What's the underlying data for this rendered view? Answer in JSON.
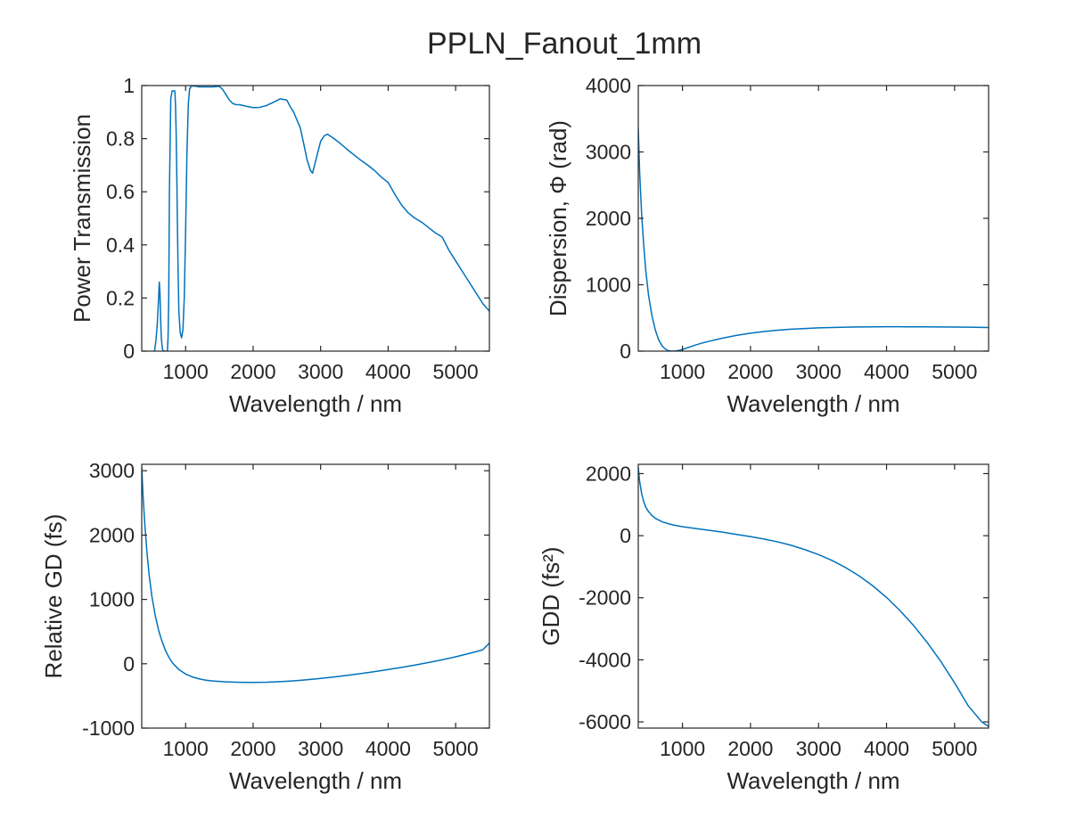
{
  "figure": {
    "title": "PPLN_Fanout_1mm"
  },
  "colors": {
    "line": "#0072BD",
    "axes": "#262626",
    "background": "#ffffff"
  },
  "chart_data": [
    {
      "type": "line",
      "xlabel": "Wavelength / nm",
      "ylabel": "Power Transmission",
      "xlim": [
        350,
        5500
      ],
      "ylim": [
        0,
        1
      ],
      "xticks": [
        1000,
        2000,
        3000,
        4000,
        5000
      ],
      "xtick_labels": [
        "1000",
        "2000",
        "3000",
        "4000",
        "5000"
      ],
      "yticks": [
        0,
        0.2,
        0.4,
        0.6,
        0.8,
        1
      ],
      "ytick_labels": [
        "0",
        "0.2",
        "0.4",
        "0.6",
        "0.8",
        "1"
      ],
      "grid": false,
      "series": [
        {
          "x": [
            540,
            560,
            580,
            600,
            610,
            620,
            630,
            640,
            655,
            670,
            685,
            700,
            715,
            730,
            740,
            750,
            760,
            780,
            800,
            820,
            840,
            850,
            860,
            870,
            880,
            890,
            900,
            920,
            940,
            960,
            980,
            1000,
            1020,
            1040,
            1060,
            1070,
            1080,
            1090,
            1100,
            1110,
            1120,
            1140,
            1160,
            1200,
            1250,
            1300,
            1400,
            1500,
            1550,
            1600,
            1650,
            1700,
            1750,
            1800,
            1900,
            2000,
            2100,
            2200,
            2300,
            2400,
            2500,
            2550,
            2600,
            2700,
            2750,
            2800,
            2850,
            2880,
            2900,
            2950,
            3000,
            3050,
            3100,
            3200,
            3300,
            3400,
            3500,
            3600,
            3700,
            3800,
            3900,
            3950,
            4000,
            4100,
            4200,
            4300,
            4400,
            4500,
            4600,
            4700,
            4800,
            4900,
            5000,
            5100,
            5200,
            5300,
            5400,
            5500
          ],
          "y": [
            0,
            0.04,
            0.1,
            0.2,
            0.26,
            0.22,
            0.12,
            0.05,
            0.01,
            0,
            0,
            0,
            0,
            0,
            0.05,
            0.2,
            0.6,
            0.95,
            0.98,
            0.98,
            0.98,
            0.93,
            0.82,
            0.65,
            0.45,
            0.28,
            0.15,
            0.07,
            0.05,
            0.08,
            0.2,
            0.45,
            0.75,
            0.93,
            0.99,
            0.99,
            0.998,
            0.998,
            0.998,
            0.998,
            0.998,
            0.998,
            0.997,
            0.995,
            0.995,
            0.995,
            0.995,
            0.997,
            0.985,
            0.965,
            0.945,
            0.932,
            0.928,
            0.928,
            0.922,
            0.917,
            0.918,
            0.925,
            0.937,
            0.95,
            0.945,
            0.92,
            0.9,
            0.84,
            0.78,
            0.72,
            0.68,
            0.67,
            0.69,
            0.74,
            0.79,
            0.81,
            0.817,
            0.8,
            0.78,
            0.758,
            0.738,
            0.718,
            0.7,
            0.68,
            0.655,
            0.645,
            0.635,
            0.59,
            0.55,
            0.52,
            0.5,
            0.485,
            0.465,
            0.445,
            0.43,
            0.38,
            0.34,
            0.3,
            0.26,
            0.22,
            0.18,
            0.15
          ]
        }
      ]
    },
    {
      "type": "line",
      "xlabel": "Wavelength / nm",
      "ylabel": "Dispersion,  Φ  (rad)",
      "xlim": [
        350,
        5500
      ],
      "ylim": [
        0,
        4000
      ],
      "xticks": [
        1000,
        2000,
        3000,
        4000,
        5000
      ],
      "xtick_labels": [
        "1000",
        "2000",
        "3000",
        "4000",
        "5000"
      ],
      "yticks": [
        0,
        1000,
        2000,
        3000,
        4000
      ],
      "ytick_labels": [
        "0",
        "1000",
        "2000",
        "3000",
        "4000"
      ],
      "grid": false,
      "series": [
        {
          "x": [
            350,
            370,
            400,
            430,
            460,
            500,
            550,
            600,
            650,
            700,
            750,
            800,
            850,
            900,
            950,
            1000,
            1100,
            1200,
            1300,
            1400,
            1500,
            1600,
            1800,
            2000,
            2200,
            2400,
            2600,
            2800,
            3000,
            3200,
            3400,
            3600,
            3800,
            4000,
            4200,
            4400,
            4600,
            4800,
            5000,
            5200,
            5500
          ],
          "y": [
            3350,
            2700,
            2050,
            1600,
            1220,
            850,
            540,
            320,
            170,
            80,
            30,
            5,
            0,
            3,
            12,
            25,
            60,
            95,
            125,
            150,
            175,
            198,
            238,
            270,
            295,
            315,
            330,
            340,
            350,
            356,
            361,
            364,
            366,
            367,
            367,
            366,
            365,
            364,
            362,
            360,
            355
          ]
        }
      ]
    },
    {
      "type": "line",
      "xlabel": "Wavelength / nm",
      "ylabel": "Relative GD (fs)",
      "xlim": [
        350,
        5500
      ],
      "ylim": [
        -1000,
        3100
      ],
      "xticks": [
        1000,
        2000,
        3000,
        4000,
        5000
      ],
      "xtick_labels": [
        "1000",
        "2000",
        "3000",
        "4000",
        "5000"
      ],
      "yticks": [
        -1000,
        0,
        1000,
        2000,
        3000
      ],
      "ytick_labels": [
        "-1000",
        "0",
        "1000",
        "2000",
        "3000"
      ],
      "grid": false,
      "series": [
        {
          "x": [
            350,
            370,
            400,
            430,
            460,
            500,
            550,
            600,
            650,
            700,
            750,
            800,
            900,
            1000,
            1100,
            1200,
            1300,
            1400,
            1600,
            1800,
            2000,
            2200,
            2400,
            2600,
            2800,
            3000,
            3200,
            3400,
            3600,
            3800,
            4000,
            4200,
            4400,
            4600,
            4800,
            5000,
            5200,
            5400,
            5500
          ],
          "y": [
            3050,
            2600,
            2100,
            1700,
            1380,
            1050,
            750,
            520,
            350,
            210,
            105,
            20,
            -90,
            -160,
            -205,
            -235,
            -255,
            -268,
            -282,
            -288,
            -290,
            -287,
            -278,
            -265,
            -248,
            -228,
            -205,
            -180,
            -152,
            -122,
            -90,
            -56,
            -20,
            20,
            62,
            108,
            160,
            215,
            320
          ]
        }
      ]
    },
    {
      "type": "line",
      "xlabel": "Wavelength / nm",
      "ylabel": "GDD  (fs²)",
      "xlim": [
        350,
        5500
      ],
      "ylim": [
        -6200,
        2300
      ],
      "xticks": [
        1000,
        2000,
        3000,
        4000,
        5000
      ],
      "xtick_labels": [
        "1000",
        "2000",
        "3000",
        "4000",
        "5000"
      ],
      "yticks": [
        -6000,
        -4000,
        -2000,
        0,
        2000
      ],
      "ytick_labels": [
        "-6000",
        "-4000",
        "-2000",
        "0",
        "2000"
      ],
      "grid": false,
      "series": [
        {
          "x": [
            350,
            370,
            400,
            430,
            460,
            500,
            550,
            600,
            700,
            800,
            900,
            1000,
            1200,
            1400,
            1600,
            1800,
            2000,
            2200,
            2400,
            2600,
            2800,
            3000,
            3200,
            3400,
            3600,
            3800,
            4000,
            4200,
            4400,
            4600,
            4800,
            5000,
            5200,
            5400,
            5500
          ],
          "y": [
            2200,
            1750,
            1350,
            1100,
            920,
            780,
            650,
            560,
            450,
            380,
            330,
            290,
            230,
            170,
            110,
            40,
            -30,
            -110,
            -200,
            -310,
            -450,
            -610,
            -800,
            -1030,
            -1300,
            -1620,
            -1990,
            -2420,
            -2900,
            -3450,
            -4060,
            -4740,
            -5480,
            -6000,
            -6150
          ]
        }
      ]
    }
  ]
}
